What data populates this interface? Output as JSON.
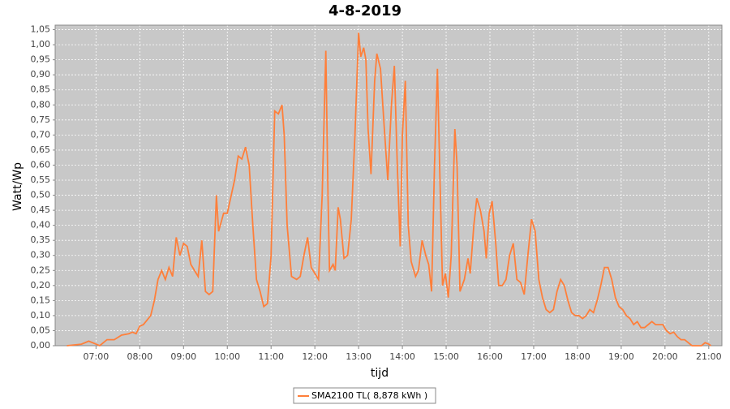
{
  "chart_data": {
    "type": "line",
    "title": "4-8-2019",
    "x_label": "tijd",
    "y_label": "Watt/Wp",
    "xlim": [
      "06:04",
      "21:18"
    ],
    "xticks": [
      "07:00",
      "08:00",
      "09:00",
      "10:00",
      "11:00",
      "12:00",
      "13:00",
      "14:00",
      "15:00",
      "16:00",
      "17:00",
      "18:00",
      "19:00",
      "20:00",
      "21:00"
    ],
    "ylim": [
      0,
      1.065
    ],
    "yticks": [
      {
        "value": 0,
        "label": "0,00"
      },
      {
        "value": 0.05,
        "label": "0,05"
      },
      {
        "value": 0.1,
        "label": "0,10"
      },
      {
        "value": 0.15,
        "label": "0,15"
      },
      {
        "value": 0.2,
        "label": "0,20"
      },
      {
        "value": 0.25,
        "label": "0,25"
      },
      {
        "value": 0.3,
        "label": "0,30"
      },
      {
        "value": 0.35,
        "label": "0,35"
      },
      {
        "value": 0.4,
        "label": "0,40"
      },
      {
        "value": 0.45,
        "label": "0,45"
      },
      {
        "value": 0.5,
        "label": "0,50"
      },
      {
        "value": 0.55,
        "label": "0,55"
      },
      {
        "value": 0.6,
        "label": "0,60"
      },
      {
        "value": 0.65,
        "label": "0,65"
      },
      {
        "value": 0.7,
        "label": "0,70"
      },
      {
        "value": 0.75,
        "label": "0,75"
      },
      {
        "value": 0.8,
        "label": "0,80"
      },
      {
        "value": 0.85,
        "label": "0,85"
      },
      {
        "value": 0.9,
        "label": "0,90"
      },
      {
        "value": 0.95,
        "label": "0,95"
      },
      {
        "value": 1.0,
        "label": "1,00"
      },
      {
        "value": 1.05,
        "label": "1,05"
      }
    ],
    "grid": true,
    "legend": "bottom",
    "x": [
      "06:20",
      "06:40",
      "06:50",
      "07:00",
      "07:05",
      "07:15",
      "07:25",
      "07:35",
      "07:45",
      "07:50",
      "07:55",
      "08:00",
      "08:05",
      "08:15",
      "08:20",
      "08:25",
      "08:30",
      "08:35",
      "08:40",
      "08:45",
      "08:50",
      "08:55",
      "09:00",
      "09:05",
      "09:10",
      "09:20",
      "09:25",
      "09:30",
      "09:35",
      "09:40",
      "09:45",
      "09:48",
      "09:55",
      "10:00",
      "10:10",
      "10:15",
      "10:20",
      "10:25",
      "10:30",
      "10:35",
      "10:40",
      "10:45",
      "10:50",
      "10:55",
      "11:00",
      "11:05",
      "11:10",
      "11:15",
      "11:18",
      "11:22",
      "11:28",
      "11:35",
      "11:40",
      "11:45",
      "11:50",
      "11:55",
      "12:00",
      "12:05",
      "12:10",
      "12:15",
      "12:18",
      "12:20",
      "12:25",
      "12:28",
      "12:32",
      "12:35",
      "12:40",
      "12:45",
      "12:50",
      "12:55",
      "13:00",
      "13:03",
      "13:07",
      "13:10",
      "13:13",
      "13:17",
      "13:22",
      "13:25",
      "13:30",
      "13:35",
      "13:40",
      "13:45",
      "13:49",
      "13:53",
      "13:57",
      "14:00",
      "14:04",
      "14:08",
      "14:12",
      "14:18",
      "14:22",
      "14:27",
      "14:32",
      "14:36",
      "14:40",
      "14:44",
      "14:48",
      "14:51",
      "14:55",
      "14:59",
      "15:03",
      "15:07",
      "15:12",
      "15:15",
      "15:19",
      "15:25",
      "15:30",
      "15:33",
      "15:38",
      "15:42",
      "15:47",
      "15:52",
      "15:55",
      "15:59",
      "16:03",
      "16:08",
      "16:12",
      "16:17",
      "16:22",
      "16:27",
      "16:32",
      "16:37",
      "16:42",
      "16:47",
      "16:52",
      "16:57",
      "17:02",
      "17:07",
      "17:12",
      "17:17",
      "17:22",
      "17:27",
      "17:32",
      "17:37",
      "17:42",
      "17:47",
      "17:52",
      "17:57",
      "18:02",
      "18:07",
      "18:12",
      "18:17",
      "18:22",
      "18:27",
      "18:32",
      "18:37",
      "18:42",
      "18:47",
      "18:52",
      "18:57",
      "19:02",
      "19:07",
      "19:12",
      "19:17",
      "19:22",
      "19:27",
      "19:32",
      "19:37",
      "19:42",
      "19:47",
      "19:52",
      "19:57",
      "20:02",
      "20:07",
      "20:12",
      "20:17",
      "20:22",
      "20:27",
      "20:32",
      "20:37",
      "20:50",
      "20:55",
      "21:00",
      "21:03"
    ],
    "series": [
      {
        "name": "SMA2100 TL( 8,878 kWh )",
        "color": "#ff7f3a",
        "values": [
          0,
          0.005,
          0.015,
          0.005,
          0,
          0.02,
          0.02,
          0.035,
          0.04,
          0.045,
          0.04,
          0.065,
          0.07,
          0.1,
          0.15,
          0.22,
          0.25,
          0.22,
          0.26,
          0.23,
          0.36,
          0.3,
          0.34,
          0.33,
          0.27,
          0.23,
          0.35,
          0.18,
          0.17,
          0.18,
          0.5,
          0.38,
          0.44,
          0.44,
          0.55,
          0.63,
          0.62,
          0.66,
          0.6,
          0.4,
          0.22,
          0.18,
          0.13,
          0.14,
          0.3,
          0.78,
          0.77,
          0.8,
          0.7,
          0.4,
          0.23,
          0.22,
          0.23,
          0.3,
          0.36,
          0.26,
          0.24,
          0.22,
          0.5,
          0.98,
          0.5,
          0.25,
          0.27,
          0.25,
          0.46,
          0.42,
          0.29,
          0.3,
          0.42,
          0.7,
          1.04,
          0.96,
          0.99,
          0.95,
          0.72,
          0.57,
          0.88,
          0.97,
          0.92,
          0.73,
          0.55,
          0.8,
          0.93,
          0.6,
          0.33,
          0.7,
          0.88,
          0.4,
          0.28,
          0.23,
          0.25,
          0.35,
          0.3,
          0.27,
          0.18,
          0.6,
          0.92,
          0.6,
          0.2,
          0.24,
          0.16,
          0.3,
          0.72,
          0.6,
          0.18,
          0.22,
          0.29,
          0.24,
          0.4,
          0.49,
          0.45,
          0.38,
          0.29,
          0.44,
          0.48,
          0.34,
          0.2,
          0.2,
          0.22,
          0.3,
          0.34,
          0.22,
          0.21,
          0.17,
          0.3,
          0.42,
          0.38,
          0.22,
          0.16,
          0.12,
          0.11,
          0.12,
          0.18,
          0.22,
          0.2,
          0.15,
          0.11,
          0.1,
          0.1,
          0.09,
          0.1,
          0.12,
          0.11,
          0.15,
          0.2,
          0.26,
          0.26,
          0.22,
          0.16,
          0.13,
          0.12,
          0.1,
          0.09,
          0.07,
          0.08,
          0.06,
          0.06,
          0.07,
          0.08,
          0.07,
          0.07,
          0.07,
          0.05,
          0.04,
          0.045,
          0.03,
          0.02,
          0.02,
          0.01,
          0,
          0,
          0.01,
          0.005,
          0
        ]
      }
    ]
  }
}
